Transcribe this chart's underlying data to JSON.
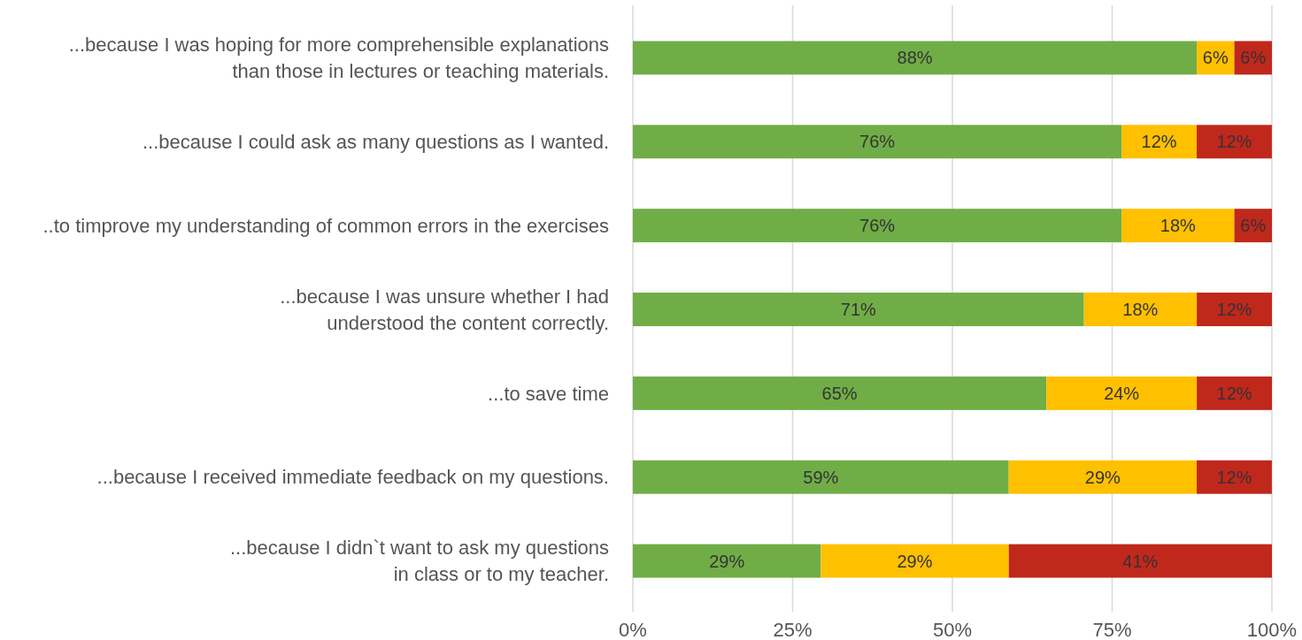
{
  "chart_data": {
    "type": "bar",
    "orientation": "horizontal",
    "stacked": true,
    "categories": [
      "...because I was hoping for more comprehensible explanations than those in lectures or teaching materials.",
      "...because I could ask as many questions as I wanted.",
      "..to timprove my understanding of common errors in the exercises",
      "...because I was unsure whether I had understood the content correctly.",
      "...to save time",
      "...because I received immediate feedback on my questions.",
      "...because I didn`t want to ask my questions in class or to my teacher."
    ],
    "series": [
      {
        "color": "#70ad47",
        "values": [
          88.24,
          76.47,
          76.47,
          70.59,
          64.71,
          58.82,
          29.41
        ],
        "value_labels": [
          "88%",
          "76%",
          "76%",
          "71%",
          "65%",
          "59%",
          "29%"
        ]
      },
      {
        "color": "#ffc000",
        "values": [
          5.88,
          11.76,
          17.65,
          17.65,
          23.53,
          29.41,
          29.41
        ],
        "value_labels": [
          "6%",
          "12%",
          "18%",
          "18%",
          "24%",
          "29%",
          "29%"
        ]
      },
      {
        "color": "#c0281c",
        "values": [
          5.88,
          11.76,
          5.88,
          11.76,
          11.76,
          11.76,
          41.18
        ],
        "value_labels": [
          "6%",
          "12%",
          "6%",
          "12%",
          "12%",
          "12%",
          "41%"
        ]
      }
    ],
    "xlim": [
      0,
      100
    ],
    "xticks": [
      {
        "value": 0,
        "label": "0%"
      },
      {
        "value": 25,
        "label": "25%"
      },
      {
        "value": 50,
        "label": "50%"
      },
      {
        "value": 75,
        "label": "75%"
      },
      {
        "value": 100,
        "label": "100%"
      }
    ],
    "grid": "x"
  }
}
